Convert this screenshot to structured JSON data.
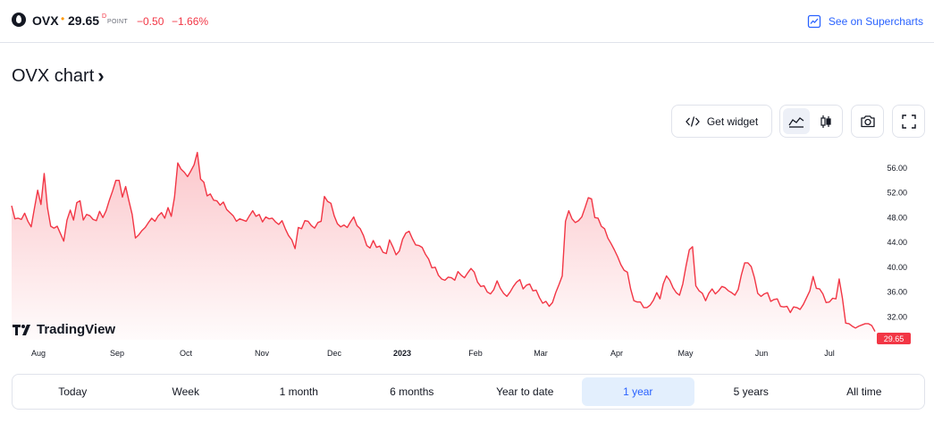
{
  "header": {
    "symbol": "OVX",
    "dot": "•",
    "price": "29.65",
    "price_sup": "D",
    "price_unit": "POINT",
    "change": "−0.50",
    "change_pct": "−1.66%",
    "supercharts_label": "See on Supercharts",
    "accent_color": "#2962ff",
    "negative_color": "#f23645"
  },
  "title": "OVX chart",
  "toolbar": {
    "widget_label": "Get widget",
    "icons": [
      "code-icon",
      "area-chart-icon",
      "candles-icon",
      "camera-icon",
      "fullscreen-icon"
    ]
  },
  "chart_data": {
    "type": "area",
    "y_ticks": [
      "56.00",
      "52.00",
      "48.00",
      "44.00",
      "40.00",
      "36.00",
      "32.00"
    ],
    "x_labels": [
      "Aug",
      "Sep",
      "Oct",
      "Nov",
      "Dec",
      "2023",
      "Feb",
      "Mar",
      "Apr",
      "May",
      "Jun",
      "Jul"
    ],
    "last_price_label": "29.65",
    "ylim": [
      28.3,
      60.0
    ],
    "line_color": "#f23645",
    "values": [
      49.9,
      47.8,
      47.9,
      47.7,
      48.7,
      47.4,
      46.5,
      49.5,
      52.4,
      50.1,
      55.1,
      49.6,
      46.6,
      46.3,
      46.6,
      45.4,
      44.2,
      47.6,
      49.2,
      47.6,
      50.4,
      50.7,
      47.6,
      48.5,
      48.3,
      47.7,
      47.5,
      49.0,
      48.0,
      49.1,
      50.8,
      52.3,
      54.0,
      54.0,
      51.3,
      53.0,
      50.7,
      48.5,
      44.7,
      45.2,
      45.9,
      46.4,
      47.2,
      47.9,
      47.4,
      48.3,
      48.8,
      47.9,
      49.6,
      48.2,
      51.3,
      56.8,
      55.8,
      55.3,
      54.6,
      55.5,
      56.5,
      58.5,
      54.2,
      53.7,
      51.5,
      51.8,
      50.8,
      50.7,
      50.0,
      50.5,
      49.3,
      48.8,
      48.3,
      47.4,
      47.8,
      47.6,
      47.4,
      48.3,
      49.1,
      48.2,
      48.5,
      47.3,
      48.1,
      47.8,
      47.9,
      47.3,
      46.9,
      47.5,
      46.2,
      45.1,
      44.4,
      43.0,
      46.4,
      46.2,
      47.5,
      47.4,
      46.7,
      46.3,
      47.2,
      47.4,
      51.4,
      50.6,
      50.3,
      48.3,
      47.0,
      46.5,
      46.8,
      46.4,
      47.3,
      48.1,
      46.7,
      46.2,
      45.1,
      43.5,
      43.1,
      44.3,
      43.2,
      43.4,
      42.4,
      42.2,
      44.4,
      43.3,
      42.0,
      42.6,
      44.5,
      45.5,
      45.8,
      44.6,
      43.6,
      43.5,
      43.2,
      42.1,
      41.3,
      39.9,
      40.0,
      38.7,
      38.1,
      37.9,
      38.4,
      38.3,
      37.9,
      39.3,
      38.7,
      38.3,
      39.1,
      39.8,
      39.2,
      37.6,
      36.9,
      37.0,
      36.0,
      35.7,
      36.4,
      37.8,
      36.6,
      35.8,
      35.3,
      36.0,
      36.9,
      37.6,
      38.0,
      36.5,
      37.1,
      37.3,
      36.2,
      36.3,
      35.1,
      34.2,
      34.5,
      33.7,
      34.3,
      35.9,
      37.2,
      38.6,
      47.4,
      49.1,
      47.8,
      47.2,
      47.5,
      48.1,
      49.6,
      51.2,
      51.0,
      48.0,
      47.9,
      46.6,
      46.2,
      44.7,
      43.8,
      42.8,
      41.7,
      40.4,
      39.5,
      39.2,
      36.5,
      34.6,
      34.4,
      34.4,
      33.5,
      33.5,
      33.9,
      34.7,
      35.9,
      34.9,
      37.3,
      38.6,
      37.9,
      36.7,
      35.9,
      35.5,
      37.3,
      40.2,
      42.8,
      43.3,
      37.0,
      36.2,
      35.8,
      34.6,
      35.8,
      36.5,
      35.7,
      36.2,
      36.9,
      36.7,
      36.2,
      35.9,
      35.5,
      36.4,
      38.8,
      40.7,
      40.7,
      40.1,
      38.3,
      35.8,
      35.3,
      35.7,
      35.9,
      34.5,
      34.8,
      34.9,
      33.7,
      33.6,
      33.7,
      32.7,
      33.6,
      33.5,
      33.2,
      34.0,
      35.1,
      36.2,
      38.5,
      36.6,
      36.5,
      35.7,
      34.3,
      34.4,
      35.0,
      34.9,
      38.1,
      35.0,
      31.0,
      30.9,
      30.5,
      30.2,
      30.5,
      30.7,
      30.9,
      30.9,
      30.6,
      29.65
    ]
  },
  "ranges": [
    "Today",
    "Week",
    "1 month",
    "6 months",
    "Year to date",
    "1 year",
    "5 years",
    "All time"
  ],
  "active_range": "1 year"
}
